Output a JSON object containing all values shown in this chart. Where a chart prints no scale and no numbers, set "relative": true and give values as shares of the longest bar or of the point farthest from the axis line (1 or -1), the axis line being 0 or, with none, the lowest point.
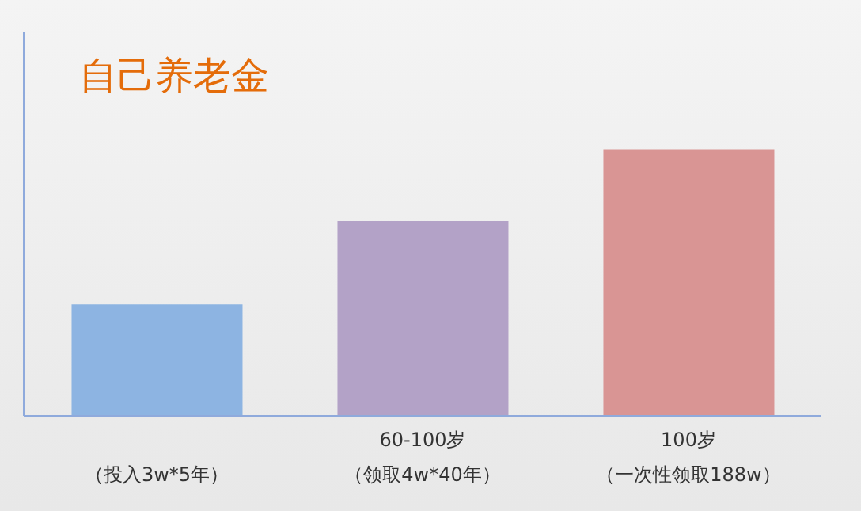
{
  "chart_data": {
    "type": "bar",
    "title": "自己养老金",
    "relative": true,
    "categories": [
      "（投入3w*5年）",
      "60-100岁（领取4w*40年）",
      "100岁（一次性领取188w）"
    ],
    "values": [
      0.42,
      0.73,
      1
    ],
    "colors": [
      "#8db4e2",
      "#b3a2c7",
      "#d99594"
    ],
    "grid": false
  }
}
